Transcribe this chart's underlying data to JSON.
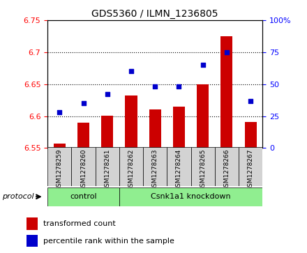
{
  "title": "GDS5360 / ILMN_1236805",
  "samples": [
    "GSM1278259",
    "GSM1278260",
    "GSM1278261",
    "GSM1278262",
    "GSM1278263",
    "GSM1278264",
    "GSM1278265",
    "GSM1278266",
    "GSM1278267"
  ],
  "transformed_counts": [
    6.557,
    6.59,
    6.601,
    6.632,
    6.61,
    6.615,
    6.65,
    6.725,
    6.591
  ],
  "percentile_ranks": [
    28,
    35,
    42,
    60,
    48,
    48,
    65,
    75,
    37
  ],
  "ylim_left": [
    6.55,
    6.75
  ],
  "ylim_right": [
    0,
    100
  ],
  "yticks_left": [
    6.55,
    6.6,
    6.65,
    6.7,
    6.75
  ],
  "yticks_right": [
    0,
    25,
    50,
    75,
    100
  ],
  "ctrl_count": 3,
  "bar_color": "#CC0000",
  "dot_color": "#0000CC",
  "protocol_color": "#90EE90",
  "tick_bg_color": "#D3D3D3",
  "protocol_label": "protocol",
  "ctrl_label": "control",
  "kd_label": "Csnk1a1 knockdown",
  "legend_red_label": "transformed count",
  "legend_blue_label": "percentile rank within the sample"
}
